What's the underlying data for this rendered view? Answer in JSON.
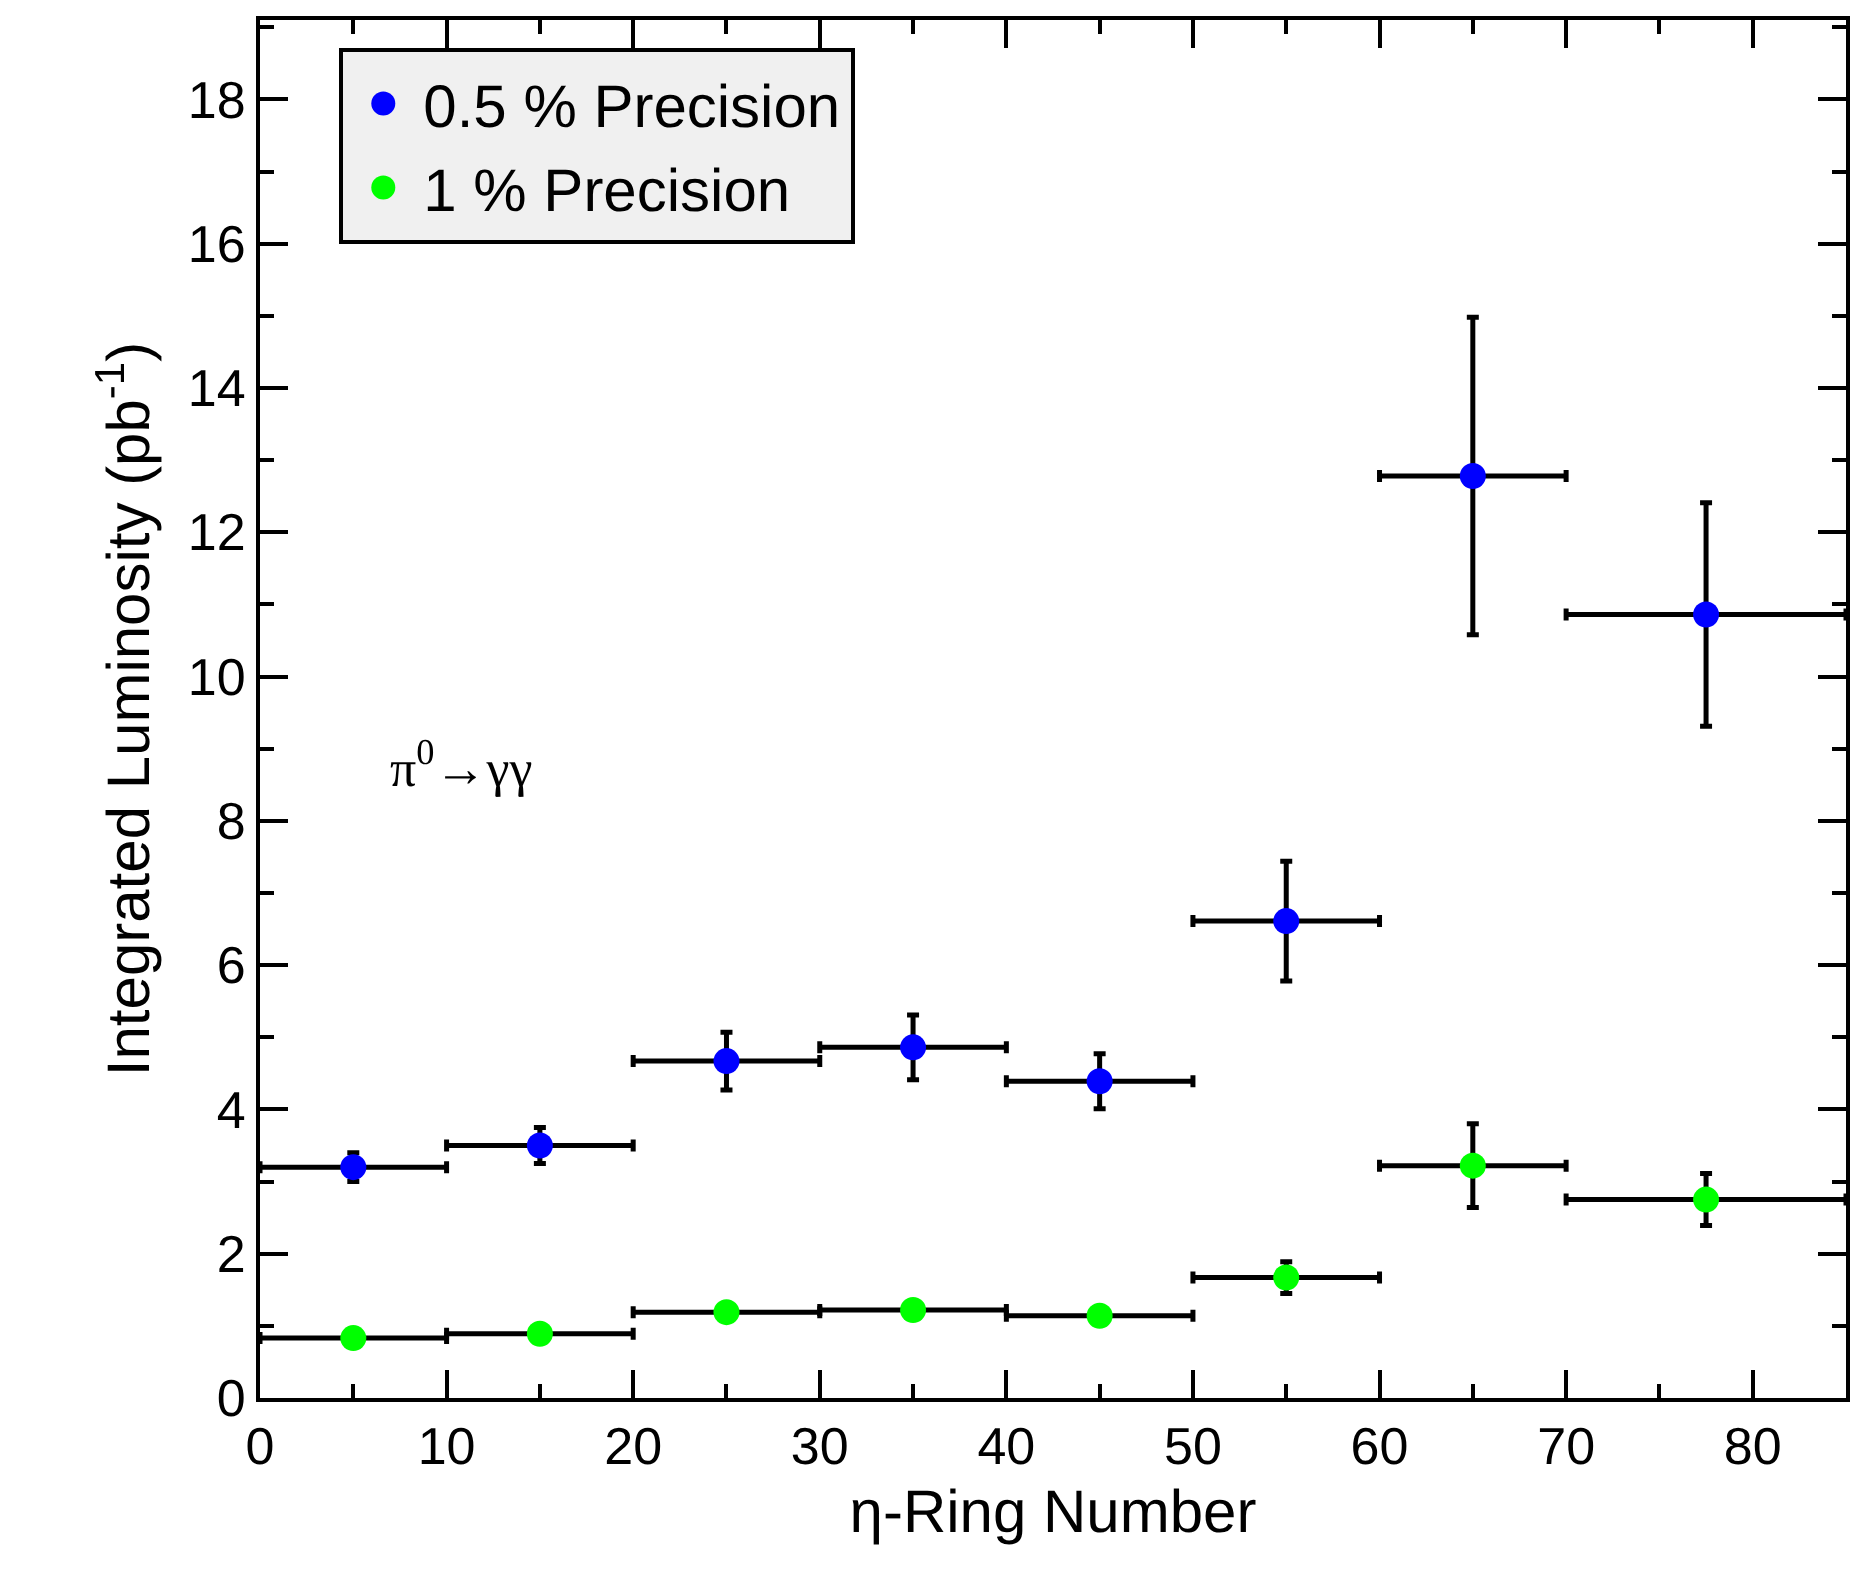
{
  "chart_data": {
    "type": "scatter",
    "xlabel": "η-Ring Number",
    "ylabel": "Integrated Luminosity (pb$^{-1}$)",
    "annotations": [
      "π$^{0}$→γγ"
    ],
    "x": [
      5,
      15,
      25,
      35,
      45,
      55,
      65,
      77.5
    ],
    "series": [
      {
        "name": "0.5 % Precision",
        "color": "#0000ff",
        "values": [
          3.2,
          3.5,
          4.67,
          4.86,
          4.39,
          6.61,
          12.78,
          10.86
        ],
        "errors": [
          0.2,
          0.25,
          0.4,
          0.45,
          0.38,
          0.83,
          2.2,
          1.55
        ],
        "xerrors": [
          5,
          5,
          5,
          5,
          5,
          5,
          5,
          7.5
        ]
      },
      {
        "name": "1 % Precision",
        "color": "#00ff00",
        "values": [
          0.83,
          0.89,
          1.19,
          1.22,
          1.14,
          1.67,
          3.22,
          2.75
        ],
        "errors": [
          null,
          null,
          null,
          null,
          null,
          0.22,
          0.58,
          0.36
        ],
        "xerrors": [
          5,
          5,
          5,
          5,
          5,
          5,
          5,
          7.5
        ]
      }
    ],
    "xlim": [
      0,
      85
    ],
    "ylim": [
      0,
      19.1
    ],
    "xticks": [
      0,
      10,
      20,
      30,
      40,
      50,
      60,
      70,
      80
    ],
    "yticks": [
      0,
      2,
      4,
      6,
      8,
      10,
      12,
      14,
      16,
      18
    ],
    "legend": "top left",
    "marker": "circle"
  }
}
